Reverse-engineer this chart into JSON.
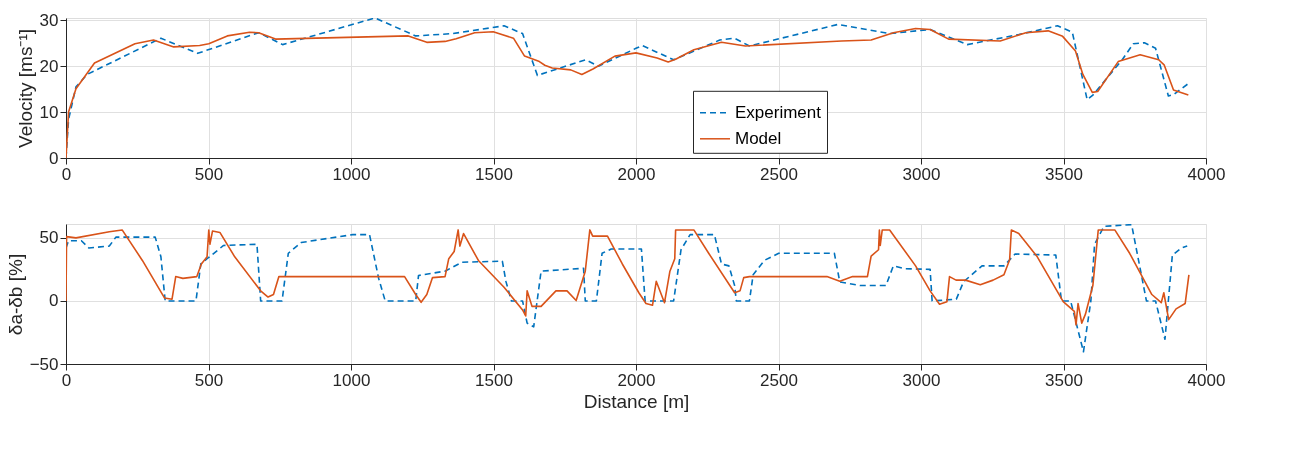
{
  "chart_data": [
    {
      "type": "line",
      "ylabel": "Velocity [ms⁻¹]",
      "xlim": [
        0,
        4000
      ],
      "xticks": [
        0,
        500,
        1000,
        1500,
        2000,
        2500,
        3000,
        3500,
        4000
      ],
      "ylim": [
        0,
        30.5
      ],
      "yticks": [
        0,
        10,
        20,
        30
      ],
      "grid": true,
      "legend": "bottom",
      "series": [
        {
          "name": "Experiment",
          "color": "#0072bd",
          "line_style": "dashed",
          "x": [
            0,
            9,
            35,
            74,
            333,
            462,
            676,
            760,
            1084,
            1227,
            1356,
            1537,
            1602,
            1654,
            1823,
            1868,
            2000,
            2022,
            2132,
            2294,
            2346,
            2398,
            2709,
            2890,
            3032,
            3162,
            3343,
            3479,
            3531,
            3583,
            3603,
            3706,
            3745,
            3784,
            3823,
            3868,
            3888,
            3940
          ],
          "values": [
            0,
            8.4,
            15.5,
            18.2,
            26.1,
            22.8,
            27.3,
            24.7,
            30.5,
            26.6,
            27.1,
            28.8,
            27.1,
            18.0,
            21.4,
            20.0,
            23.9,
            24.5,
            21.4,
            25.7,
            26.1,
            24.4,
            29.1,
            27.1,
            28.0,
            24.7,
            26.9,
            28.8,
            27.4,
            12.7,
            13.7,
            21.4,
            24.9,
            25.1,
            23.9,
            13.5,
            13.9,
            16.3
          ]
        },
        {
          "name": "Model",
          "color": "#d95319",
          "line_style": "solid",
          "x": [
            0,
            9,
            35,
            100,
            242,
            307,
            378,
            469,
            501,
            566,
            644,
            676,
            735,
            1201,
            1266,
            1330,
            1369,
            1434,
            1499,
            1570,
            1609,
            1661,
            1680,
            1706,
            1771,
            1810,
            1849,
            1926,
            2000,
            2074,
            2113,
            2139,
            2203,
            2300,
            2384,
            2721,
            2825,
            2903,
            2981,
            3032,
            3097,
            3278,
            3368,
            3446,
            3497,
            3542,
            3568,
            3601,
            3620,
            3692,
            3769,
            3834,
            3853,
            3886,
            3938
          ],
          "values": [
            0,
            10,
            15.1,
            20.7,
            24.9,
            25.7,
            24.2,
            24.5,
            24.9,
            26.6,
            27.4,
            27.3,
            25.9,
            26.6,
            25.2,
            25.4,
            26.0,
            27.3,
            27.5,
            26.1,
            22.2,
            21.0,
            20.2,
            19.6,
            19.2,
            18.2,
            19.4,
            22.2,
            22.9,
            21.8,
            20.9,
            21.5,
            23.6,
            25.2,
            24.4,
            25.5,
            25.7,
            27.3,
            28.2,
            28.0,
            25.9,
            25.5,
            27.3,
            27.7,
            26.5,
            23.3,
            18.2,
            14.3,
            14.5,
            21.0,
            22.5,
            21.4,
            20.3,
            14.8,
            13.7
          ]
        }
      ]
    },
    {
      "type": "line",
      "xlabel": "Distance [m]",
      "ylabel": "δa-δb [%]",
      "xlim": [
        0,
        4000
      ],
      "xticks": [
        0,
        500,
        1000,
        1500,
        2000,
        2500,
        3000,
        3500,
        4000
      ],
      "ylim": [
        -50,
        61
      ],
      "yticks": [
        -50,
        0,
        50
      ],
      "grid": true,
      "series": [
        {
          "color": "#0072bd",
          "line_style": "dashed",
          "x": [
            0,
            9,
            54,
            80,
            152,
            175,
            313,
            333,
            348,
            456,
            473,
            495,
            553,
            670,
            683,
            758,
            780,
            825,
            1006,
            1065,
            1097,
            1120,
            1227,
            1237,
            1330,
            1389,
            1531,
            1544,
            1563,
            1602,
            1618,
            1641,
            1667,
            1816,
            1822,
            1861,
            1881,
            1913,
            2000,
            2019,
            2032,
            2132,
            2158,
            2190,
            2275,
            2300,
            2326,
            2346,
            2352,
            2398,
            2411,
            2450,
            2501,
            2696,
            2715,
            2786,
            2877,
            2903,
            2942,
            3032,
            3039,
            3124,
            3149,
            3214,
            3291,
            3330,
            3473,
            3493,
            3525,
            3570,
            3596,
            3609,
            3642,
            3739,
            3791,
            3823,
            3856,
            3882,
            3914,
            3934
          ],
          "values": [
            42,
            47.7,
            47.7,
            42,
            43.5,
            50.6,
            50.6,
            35,
            0,
            0,
            29.3,
            33.5,
            44,
            44.9,
            0,
            0,
            37.8,
            46.3,
            52.6,
            52.6,
            17.9,
            0,
            0,
            20.2,
            23.6,
            30.7,
            31.5,
            15.1,
            0,
            0,
            -17.6,
            -20.5,
            23.6,
            25.9,
            0,
            0,
            37.8,
            41.2,
            41.2,
            41.2,
            0,
            0,
            40.6,
            52.6,
            52.6,
            29.3,
            27.8,
            12.2,
            0,
            0,
            20.7,
            32.1,
            37.8,
            37.8,
            15.1,
            12.2,
            12.2,
            27.8,
            25.6,
            25,
            0,
            1.4,
            15.1,
            27.8,
            27.8,
            37.2,
            36.4,
            0,
            0,
            -40.3,
            0,
            44.9,
            59.1,
            60.5,
            0,
            0,
            -30.4,
            36.4,
            42,
            43.5
          ]
        },
        {
          "color": "#d95319",
          "line_style": "solid",
          "x": [
            0,
            2,
            35,
            152,
            197,
            268,
            346,
            372,
            385,
            410,
            459,
            475,
            495,
            501,
            505,
            514,
            540,
            592,
            683,
            709,
            728,
            747,
            1188,
            1227,
            1246,
            1266,
            1286,
            1330,
            1343,
            1362,
            1376,
            1382,
            1395,
            1447,
            1537,
            1602,
            1613,
            1618,
            1635,
            1667,
            1719,
            1758,
            1790,
            1822,
            1838,
            1848,
            1900,
            1952,
            2010,
            2035,
            2058,
            2071,
            2100,
            2119,
            2136,
            2139,
            2203,
            2255,
            2346,
            2365,
            2378,
            2398,
            2670,
            2715,
            2760,
            2812,
            2825,
            2851,
            2854,
            2857,
            2864,
            2890,
            2981,
            3032,
            3065,
            3091,
            3100,
            3123,
            3156,
            3208,
            3253,
            3291,
            3311,
            3317,
            3343,
            3408,
            3499,
            3538,
            3544,
            3551,
            3564,
            3577,
            3603,
            3622,
            3680,
            3732,
            3810,
            3843,
            3852,
            3869,
            3895,
            3927,
            3940
          ],
          "values": [
            0,
            51,
            50,
            54.8,
            56.3,
            32.1,
            2.3,
            1.4,
            19.3,
            17.9,
            19.3,
            29.3,
            35,
            56.3,
            44.9,
            55.4,
            54.3,
            35,
            8,
            3.1,
            5.1,
            19.3,
            19.3,
            5.1,
            -1.1,
            5.1,
            18.5,
            19.3,
            33.5,
            39.2,
            56.3,
            43.5,
            53.4,
            32.1,
            10.8,
            -7.1,
            -11.9,
            8,
            -4.3,
            -4.3,
            8,
            8,
            0.3,
            23.6,
            56.3,
            51.4,
            51.4,
            29.3,
            6.5,
            -2,
            -3.4,
            15.6,
            -1.4,
            23.6,
            33.5,
            56.3,
            56.3,
            37.8,
            6.5,
            8,
            18.5,
            19.3,
            19.3,
            15.6,
            19.3,
            19.3,
            35.5,
            40.6,
            56.3,
            44,
            56.3,
            56.3,
            27.8,
            8,
            -2.6,
            -0.6,
            19.3,
            16.5,
            16.5,
            12.8,
            16.5,
            20.7,
            32.7,
            56.3,
            53.4,
            35,
            -0.6,
            -8.2,
            -19,
            -2,
            -17.6,
            -10.5,
            12.2,
            56.3,
            56.3,
            37.8,
            5.1,
            -1.4,
            6.5,
            -14.8,
            -6.3,
            -2,
            20.7
          ]
        }
      ]
    }
  ]
}
